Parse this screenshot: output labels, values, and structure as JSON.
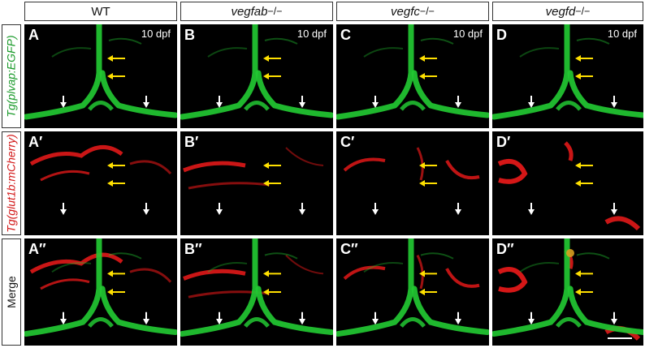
{
  "columns": [
    {
      "label": "WT",
      "sup": ""
    },
    {
      "label": "vegfab",
      "sup": "−/−"
    },
    {
      "label": "vegfc",
      "sup": "−/−"
    },
    {
      "label": "vegfd",
      "sup": "−/−"
    }
  ],
  "rows": [
    {
      "label": "Tg(plvap:EGFP)",
      "channel": "green"
    },
    {
      "label": "Tg(glut1b:mCherry)",
      "channel": "red"
    },
    {
      "label": "Merge",
      "channel": "merge"
    }
  ],
  "panel_letters": [
    [
      "A",
      "B",
      "C",
      "D"
    ],
    [
      "A′",
      "B′",
      "C′",
      "D′"
    ],
    [
      "A″",
      "B″",
      "C″",
      "D″"
    ]
  ],
  "timepoint": "10 dpf",
  "colors": {
    "green": "#22c832",
    "red": "#e01818",
    "yellow_arrow": "#ffe000",
    "white_arrow": "#ffffff",
    "merge_overlap": "#d8a020"
  },
  "arrows": {
    "yellow": 2,
    "white": 2
  }
}
